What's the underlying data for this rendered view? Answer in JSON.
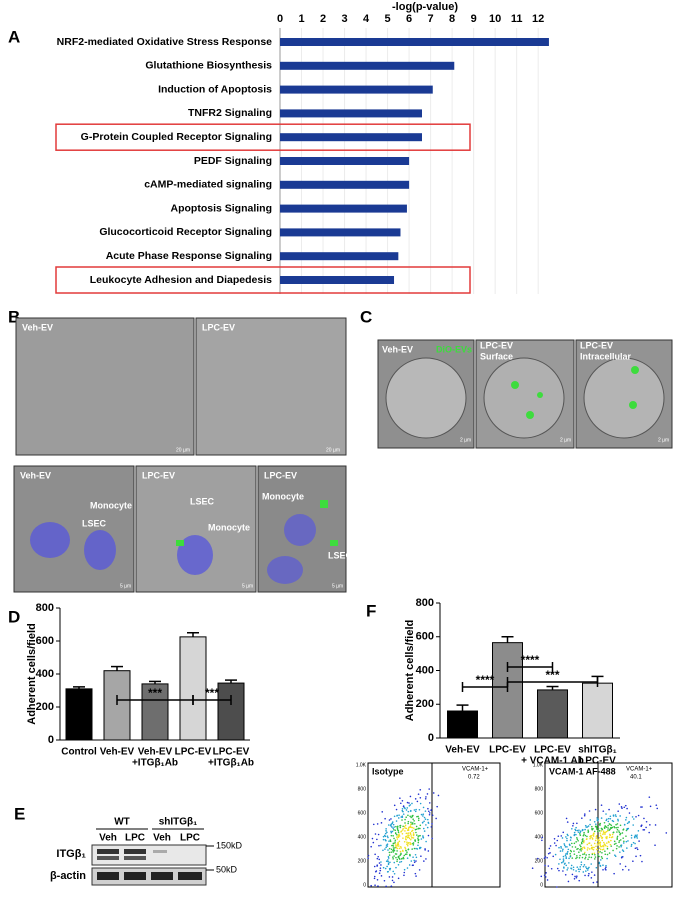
{
  "chart_data": [
    {
      "type": "barh",
      "title": "-log(p-value)",
      "categories": [
        "NRF2-mediated Oxidative Stress Response",
        "Glutathione Biosynthesis",
        "Induction of Apoptosis",
        "TNFR2 Signaling",
        "G-Protein Coupled Receptor Signaling",
        "PEDF Signaling",
        "cAMP-mediated signaling",
        "Apoptosis Signaling",
        "Glucocorticoid Receptor Signaling",
        "Acute Phase Response Signaling",
        "Leukocyte Adhesion and Diapedesis"
      ],
      "values": [
        12.5,
        8.1,
        7.1,
        6.6,
        6.6,
        6.0,
        6.0,
        5.9,
        5.6,
        5.5,
        5.3
      ],
      "color": "#1a3a94",
      "xlim": [
        0,
        13.2
      ],
      "xticks": [
        0,
        1,
        2,
        3,
        4,
        5,
        6,
        7,
        8,
        9,
        10,
        11,
        12
      ],
      "grid": true,
      "highlight": [
        4,
        10
      ],
      "highlight_color": "#e23a3a"
    },
    {
      "type": "bar",
      "ylabel": "Adherent cells/field",
      "categories": [
        [
          "Control"
        ],
        [
          "Veh-EV"
        ],
        [
          "Veh-EV",
          "+ITGβ₁Ab"
        ],
        [
          "LPC-EV"
        ],
        [
          "LPC-EV",
          "+ITGβ₁Ab"
        ]
      ],
      "values": [
        310,
        420,
        340,
        625,
        345
      ],
      "errors": [
        12,
        25,
        15,
        25,
        18
      ],
      "colors": [
        "#000000",
        "#a6a6a6",
        "#6e6e6e",
        "#d6d6d6",
        "#4d4d4d"
      ],
      "ylim": [
        0,
        800
      ],
      "yticks": [
        0,
        200,
        400,
        600,
        800
      ],
      "significance": [
        {
          "from": 1,
          "to": 3,
          "label": "***"
        },
        {
          "from": 3,
          "to": 4,
          "label": "***"
        }
      ]
    },
    {
      "type": "bar",
      "ylabel": "Adherent cells/field",
      "categories": [
        [
          "Veh-EV"
        ],
        [
          "LPC-EV"
        ],
        [
          "LPC-EV",
          "+ VCAM-1 Ab"
        ],
        [
          "shITGβ₁",
          "LPC-EV"
        ]
      ],
      "values": [
        160,
        565,
        285,
        325
      ],
      "errors": [
        35,
        35,
        20,
        40
      ],
      "colors": [
        "#000000",
        "#8c8c8c",
        "#5a5a5a",
        "#d6d6d6"
      ],
      "ylim": [
        0,
        800
      ],
      "yticks": [
        0,
        200,
        400,
        600,
        800
      ],
      "significance": [
        {
          "from": 0,
          "to": 1,
          "label": "****"
        },
        {
          "from": 1,
          "to": 2,
          "label": "****"
        },
        {
          "from": 1,
          "to": 3,
          "label": "***"
        }
      ]
    }
  ],
  "panel_labels": [
    "A",
    "B",
    "C",
    "D",
    "E",
    "F"
  ],
  "panel_b": {
    "labels": [
      "Veh-EV",
      "LPC-EV",
      "Veh-EV",
      "LPC-EV",
      "LPC-EV"
    ],
    "scale_large": "20 µm",
    "scale_small": "5 µm",
    "arrows": [
      "Monocyte",
      "LSEC",
      "LSEC",
      "Monocyte",
      "Monocyte",
      "LSEC"
    ]
  },
  "panel_c": {
    "labels": [
      "Veh-EV",
      "LPC-EV",
      "LPC-EV"
    ],
    "sublabels": [
      "Surface",
      "Intracellular"
    ],
    "stain": "DiO-EVs",
    "scale": "2 µm"
  },
  "blot": {
    "groups": [
      "WT",
      "shITGβ₁"
    ],
    "lanes": [
      "Veh",
      "LPC",
      "Veh",
      "LPC"
    ],
    "rows": [
      "ITGβ₁",
      "β-actin"
    ],
    "sizes": [
      "150kD",
      "50kD"
    ]
  },
  "flow": {
    "plots": [
      "Isotype",
      "VCAM-1 AF-488"
    ],
    "gate": "VCAM-1+",
    "percent": [
      "0.72",
      "40.1"
    ],
    "yticks": [
      "1.0K",
      "800",
      "600",
      "400",
      "200",
      "0"
    ]
  }
}
